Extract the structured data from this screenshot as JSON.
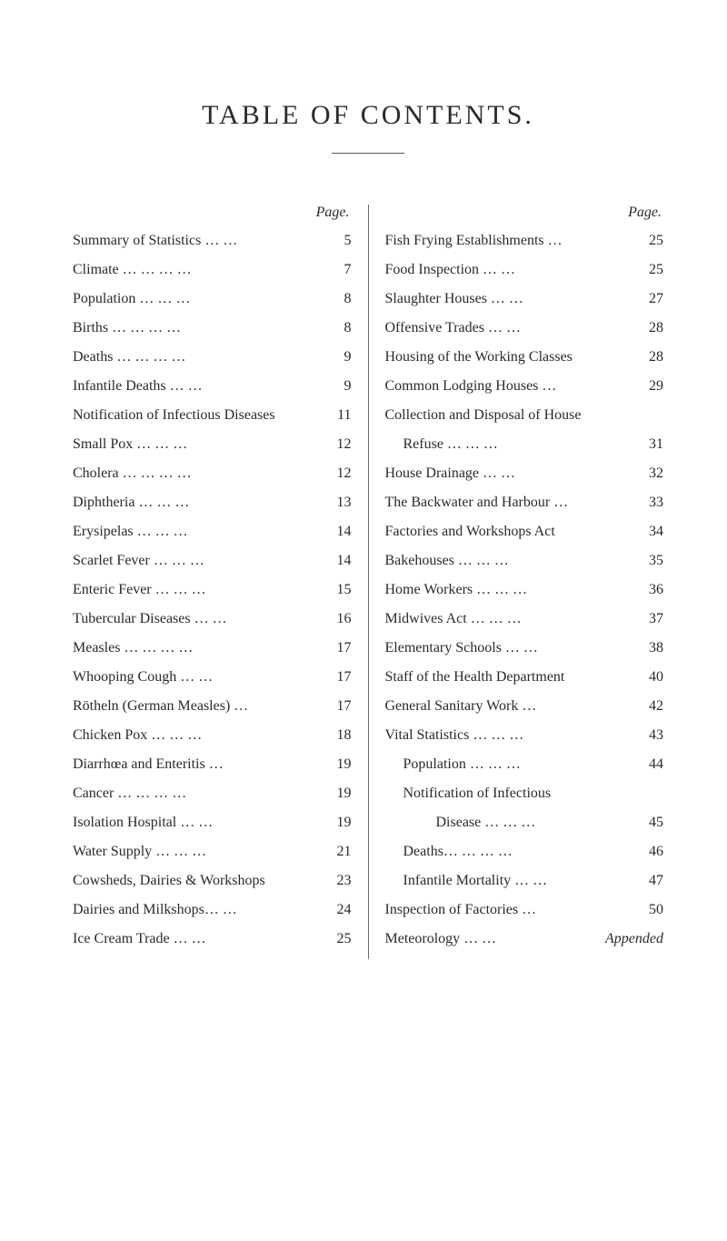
{
  "title": "TABLE OF CONTENTS.",
  "columnHeader": "Page.",
  "left": [
    {
      "label": "Summary of Statistics … …",
      "page": "5",
      "indent": 0
    },
    {
      "label": "Climate … … … …",
      "page": "7",
      "indent": 0
    },
    {
      "label": "Population … … …",
      "page": "8",
      "indent": 0
    },
    {
      "label": "Births … … … …",
      "page": "8",
      "indent": 0
    },
    {
      "label": "Deaths … … … …",
      "page": "9",
      "indent": 0
    },
    {
      "label": "Infantile Deaths … …",
      "page": "9",
      "indent": 0
    },
    {
      "label": "Notification of Infectious Diseases",
      "page": "11",
      "indent": 0
    },
    {
      "label": "Small Pox … … …",
      "page": "12",
      "indent": 0
    },
    {
      "label": "Cholera … … … …",
      "page": "12",
      "indent": 0
    },
    {
      "label": "Diphtheria … … …",
      "page": "13",
      "indent": 0
    },
    {
      "label": "Erysipelas … … …",
      "page": "14",
      "indent": 0
    },
    {
      "label": "Scarlet Fever … … …",
      "page": "14",
      "indent": 0
    },
    {
      "label": "Enteric Fever … … …",
      "page": "15",
      "indent": 0
    },
    {
      "label": "Tubercular Diseases … …",
      "page": "16",
      "indent": 0
    },
    {
      "label": "Measles … … … …",
      "page": "17",
      "indent": 0
    },
    {
      "label": "Whooping Cough … …",
      "page": "17",
      "indent": 0
    },
    {
      "label": "Rötheln (German Measles) …",
      "page": "17",
      "indent": 0
    },
    {
      "label": "Chicken Pox … … …",
      "page": "18",
      "indent": 0
    },
    {
      "label": "Diarrhœa and Enteritis …",
      "page": "19",
      "indent": 0
    },
    {
      "label": "Cancer … … … …",
      "page": "19",
      "indent": 0
    },
    {
      "label": "Isolation Hospital … …",
      "page": "19",
      "indent": 0
    },
    {
      "label": "Water Supply … … …",
      "page": "21",
      "indent": 0
    },
    {
      "label": "Cowsheds, Dairies & Workshops",
      "page": "23",
      "indent": 0
    },
    {
      "label": "Dairies and Milkshops… …",
      "page": "24",
      "indent": 0
    },
    {
      "label": "Ice Cream Trade … …",
      "page": "25",
      "indent": 0
    }
  ],
  "right": [
    {
      "label": "Fish Frying Establishments …",
      "page": "25",
      "indent": 0
    },
    {
      "label": "Food Inspection … …",
      "page": "25",
      "indent": 0
    },
    {
      "label": "Slaughter Houses … …",
      "page": "27",
      "indent": 0
    },
    {
      "label": "Offensive Trades … …",
      "page": "28",
      "indent": 0
    },
    {
      "label": "Housing of the Working Classes",
      "page": "28",
      "indent": 0
    },
    {
      "label": "Common Lodging Houses …",
      "page": "29",
      "indent": 0
    },
    {
      "label": "Collection and Disposal of House",
      "page": "",
      "indent": 0
    },
    {
      "label": "Refuse … … …",
      "page": "31",
      "indent": 1
    },
    {
      "label": "House Drainage … …",
      "page": "32",
      "indent": 0
    },
    {
      "label": "The Backwater and Harbour …",
      "page": "33",
      "indent": 0
    },
    {
      "label": "Factories and Workshops Act",
      "page": "34",
      "indent": 0
    },
    {
      "label": "Bakehouses … … …",
      "page": "35",
      "indent": 0
    },
    {
      "label": "Home Workers … … …",
      "page": "36",
      "indent": 0
    },
    {
      "label": "Midwives Act … … …",
      "page": "37",
      "indent": 0
    },
    {
      "label": "Elementary Schools … …",
      "page": "38",
      "indent": 0
    },
    {
      "label": "Staff of the Health Department",
      "page": "40",
      "indent": 0
    },
    {
      "label": "General Sanitary Work …",
      "page": "42",
      "indent": 0
    },
    {
      "label": "Vital Statistics … … …",
      "page": "43",
      "indent": 0
    },
    {
      "label": "Population … … …",
      "page": "44",
      "indent": 1
    },
    {
      "label": "Notification of Infectious",
      "page": "",
      "indent": 1
    },
    {
      "label": "Disease … … …",
      "page": "45",
      "indent": 3
    },
    {
      "label": "Deaths… … … …",
      "page": "46",
      "indent": 1
    },
    {
      "label": "Infantile Mortality … …",
      "page": "47",
      "indent": 1
    },
    {
      "label": "Inspection of Factories …",
      "page": "50",
      "indent": 0
    },
    {
      "label": "Meteorology … …",
      "page": "Appended",
      "indent": 0,
      "italicPage": true
    }
  ],
  "style": {
    "background": "#ffffff",
    "text_color": "#2a2a2a",
    "title_fontsize": 30,
    "title_letterspacing": 3,
    "body_fontsize": 16,
    "entry_spacing": 12,
    "column_rule_color": "#6a6a6a",
    "divider_width": 80
  }
}
